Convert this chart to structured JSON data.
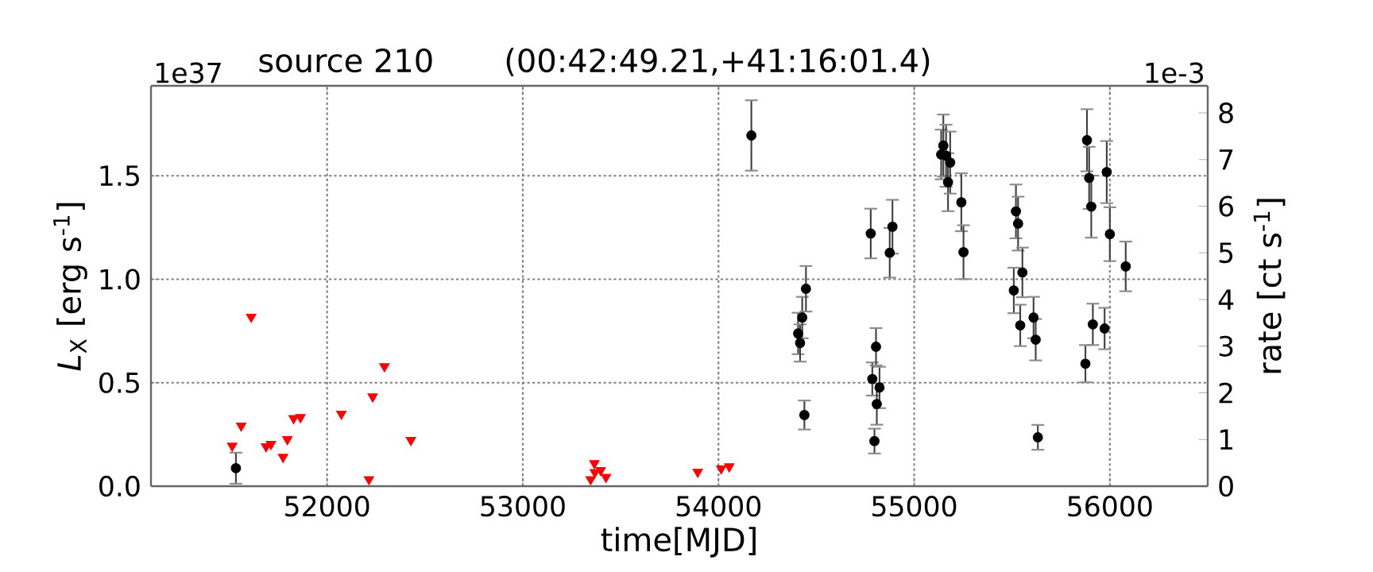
{
  "chart_data": {
    "type": "scatter",
    "title": "source 210",
    "subtitle": "(00:42:49.21,+41:16:01.4)",
    "xlabel": "time[MJD]",
    "ylabel": "*L*$_{X}$ [erg s$^{-1}$]",
    "y2label": "rate [ct s$^{-1}$]",
    "annotations": [
      "1e37",
      "1e-3"
    ],
    "xlim": [
      51100,
      56500
    ],
    "xticks": [
      52000,
      53000,
      54000,
      55000,
      56000
    ],
    "ylim": [
      0,
      1.935
    ],
    "yticks": [
      {
        "value": 0,
        "label": "0.0"
      },
      0.5,
      {
        "value": 1,
        "label": "1.0"
      },
      1.5
    ],
    "y2lim": [
      0,
      8.58
    ],
    "y2ticks": [
      0,
      1,
      2,
      3,
      4,
      5,
      6,
      7,
      8
    ],
    "grid": true,
    "series": [
      {
        "color": "#000000",
        "marker": "circle",
        "x": [
          51534,
          54168,
          54407,
          54417,
          54428,
          54447,
          54439,
          54778,
          54786,
          54805,
          54797,
          54823,
          54809,
          54875,
          54889,
          55138,
          55149,
          55163,
          55173,
          55184,
          55241,
          55252,
          55520,
          55531,
          55509,
          55553,
          55542,
          55610,
          55621,
          55632,
          55875,
          55883,
          55894,
          55905,
          55913,
          55984,
          55973,
          56000,
          56081
        ],
        "values": [
          0.087,
          1.695,
          0.738,
          0.692,
          0.815,
          0.954,
          0.344,
          1.221,
          0.518,
          0.674,
          0.218,
          0.477,
          0.397,
          1.128,
          1.254,
          1.603,
          1.646,
          1.597,
          1.469,
          1.564,
          1.372,
          1.131,
          1.328,
          1.269,
          0.946,
          1.033,
          0.777,
          0.815,
          0.708,
          0.236,
          0.592,
          1.672,
          1.49,
          1.351,
          0.782,
          1.518,
          0.762,
          1.218,
          1.062
        ],
        "errors": [
          0.075,
          0.17,
          0.1,
          0.09,
          0.1,
          0.11,
          0.07,
          0.12,
          0.08,
          0.09,
          0.06,
          0.1,
          0.1,
          0.12,
          0.13,
          0.12,
          0.15,
          0.15,
          0.14,
          0.15,
          0.14,
          0.13,
          0.13,
          0.13,
          0.11,
          0.12,
          0.1,
          0.1,
          0.1,
          0.06,
          0.09,
          0.15,
          0.15,
          0.15,
          0.1,
          0.15,
          0.1,
          0.13,
          0.12
        ]
      },
      {
        "color": "#ff0000",
        "marker": "triangle",
        "x": [
          51515,
          51561,
          51612,
          51688,
          51713,
          51775,
          51797,
          51829,
          51864,
          52073,
          52214,
          52233,
          52293,
          52428,
          53347,
          53366,
          53368,
          53398,
          53425,
          53894,
          54014,
          54055
        ],
        "values": [
          0.195,
          0.292,
          0.818,
          0.192,
          0.203,
          0.141,
          0.226,
          0.328,
          0.333,
          0.349,
          0.033,
          0.433,
          0.579,
          0.223,
          0.033,
          0.11,
          0.067,
          0.077,
          0.044,
          0.069,
          0.085,
          0.095
        ]
      }
    ]
  }
}
